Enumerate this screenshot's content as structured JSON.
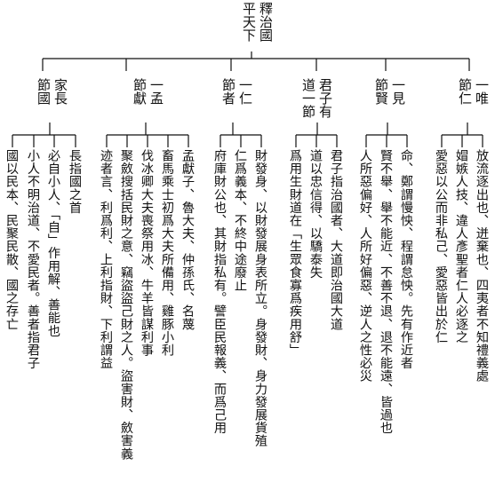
{
  "root": {
    "columns": [
      "釋治國",
      "平天下"
    ]
  },
  "groups": [
    {
      "id": "g1",
      "columns": [
        "一唯",
        "節仁"
      ],
      "leaves": [
        "放流逐出也、迸棄也、四夷者不知禮義處",
        "媢嫉人技、違人彥聖者仁人必逐之",
        "愛惡以公而非私己、愛惡皆出於仁"
      ]
    },
    {
      "id": "g2",
      "columns": [
        "一見",
        "節賢"
      ],
      "leaves": [
        "命、鄭謂慢怏、程謂怠怏。先有作近者",
        "賢不舉、舉不能近、不善不退、退不能遠、皆過也",
        "人所惡偏好、人所好偏惡、逆人之性必災"
      ]
    },
    {
      "id": "g3",
      "columns": [
        "君子有",
        "道一節"
      ],
      "leaves": [
        "君子指治國者、大道即治國大道",
        "道以忠信得、以驕泰失",
        "爲用生財道在「生眾食寡爲疾用舒」"
      ]
    },
    {
      "id": "g4",
      "columns": [
        "一仁",
        "節者"
      ],
      "leaves": [
        "財發身、以財發展身表所立。身發財、身力發展貨殖",
        "仁爲義本、不終中途廢止",
        "府庫財公也、其財指私有。譬臣民報義、而爲己用"
      ]
    },
    {
      "id": "g5",
      "columns": [
        "一孟",
        "節獻"
      ],
      "leaves": [
        "孟獻子、魯大夫、仲孫氏、名蔑",
        "畜馬乘士初爲大夫所備用、雞豚小利",
        "伐冰卿大夫喪祭用冰、牛羊皆謀利事",
        "聚斂搜括民財之意、竊盜盜己財之人。盜害財、斂害義",
        "迹者言、利爲利、上利指財、下利謂益"
      ]
    },
    {
      "id": "g6",
      "columns": [
        "家長",
        "節國"
      ],
      "leaves": [
        "長指國之首",
        "必自小人、「自」作用解、善能也",
        "小人不明治道、不愛民者。善者指君子",
        "國以民本、民聚民散、國之存亡"
      ]
    }
  ]
}
